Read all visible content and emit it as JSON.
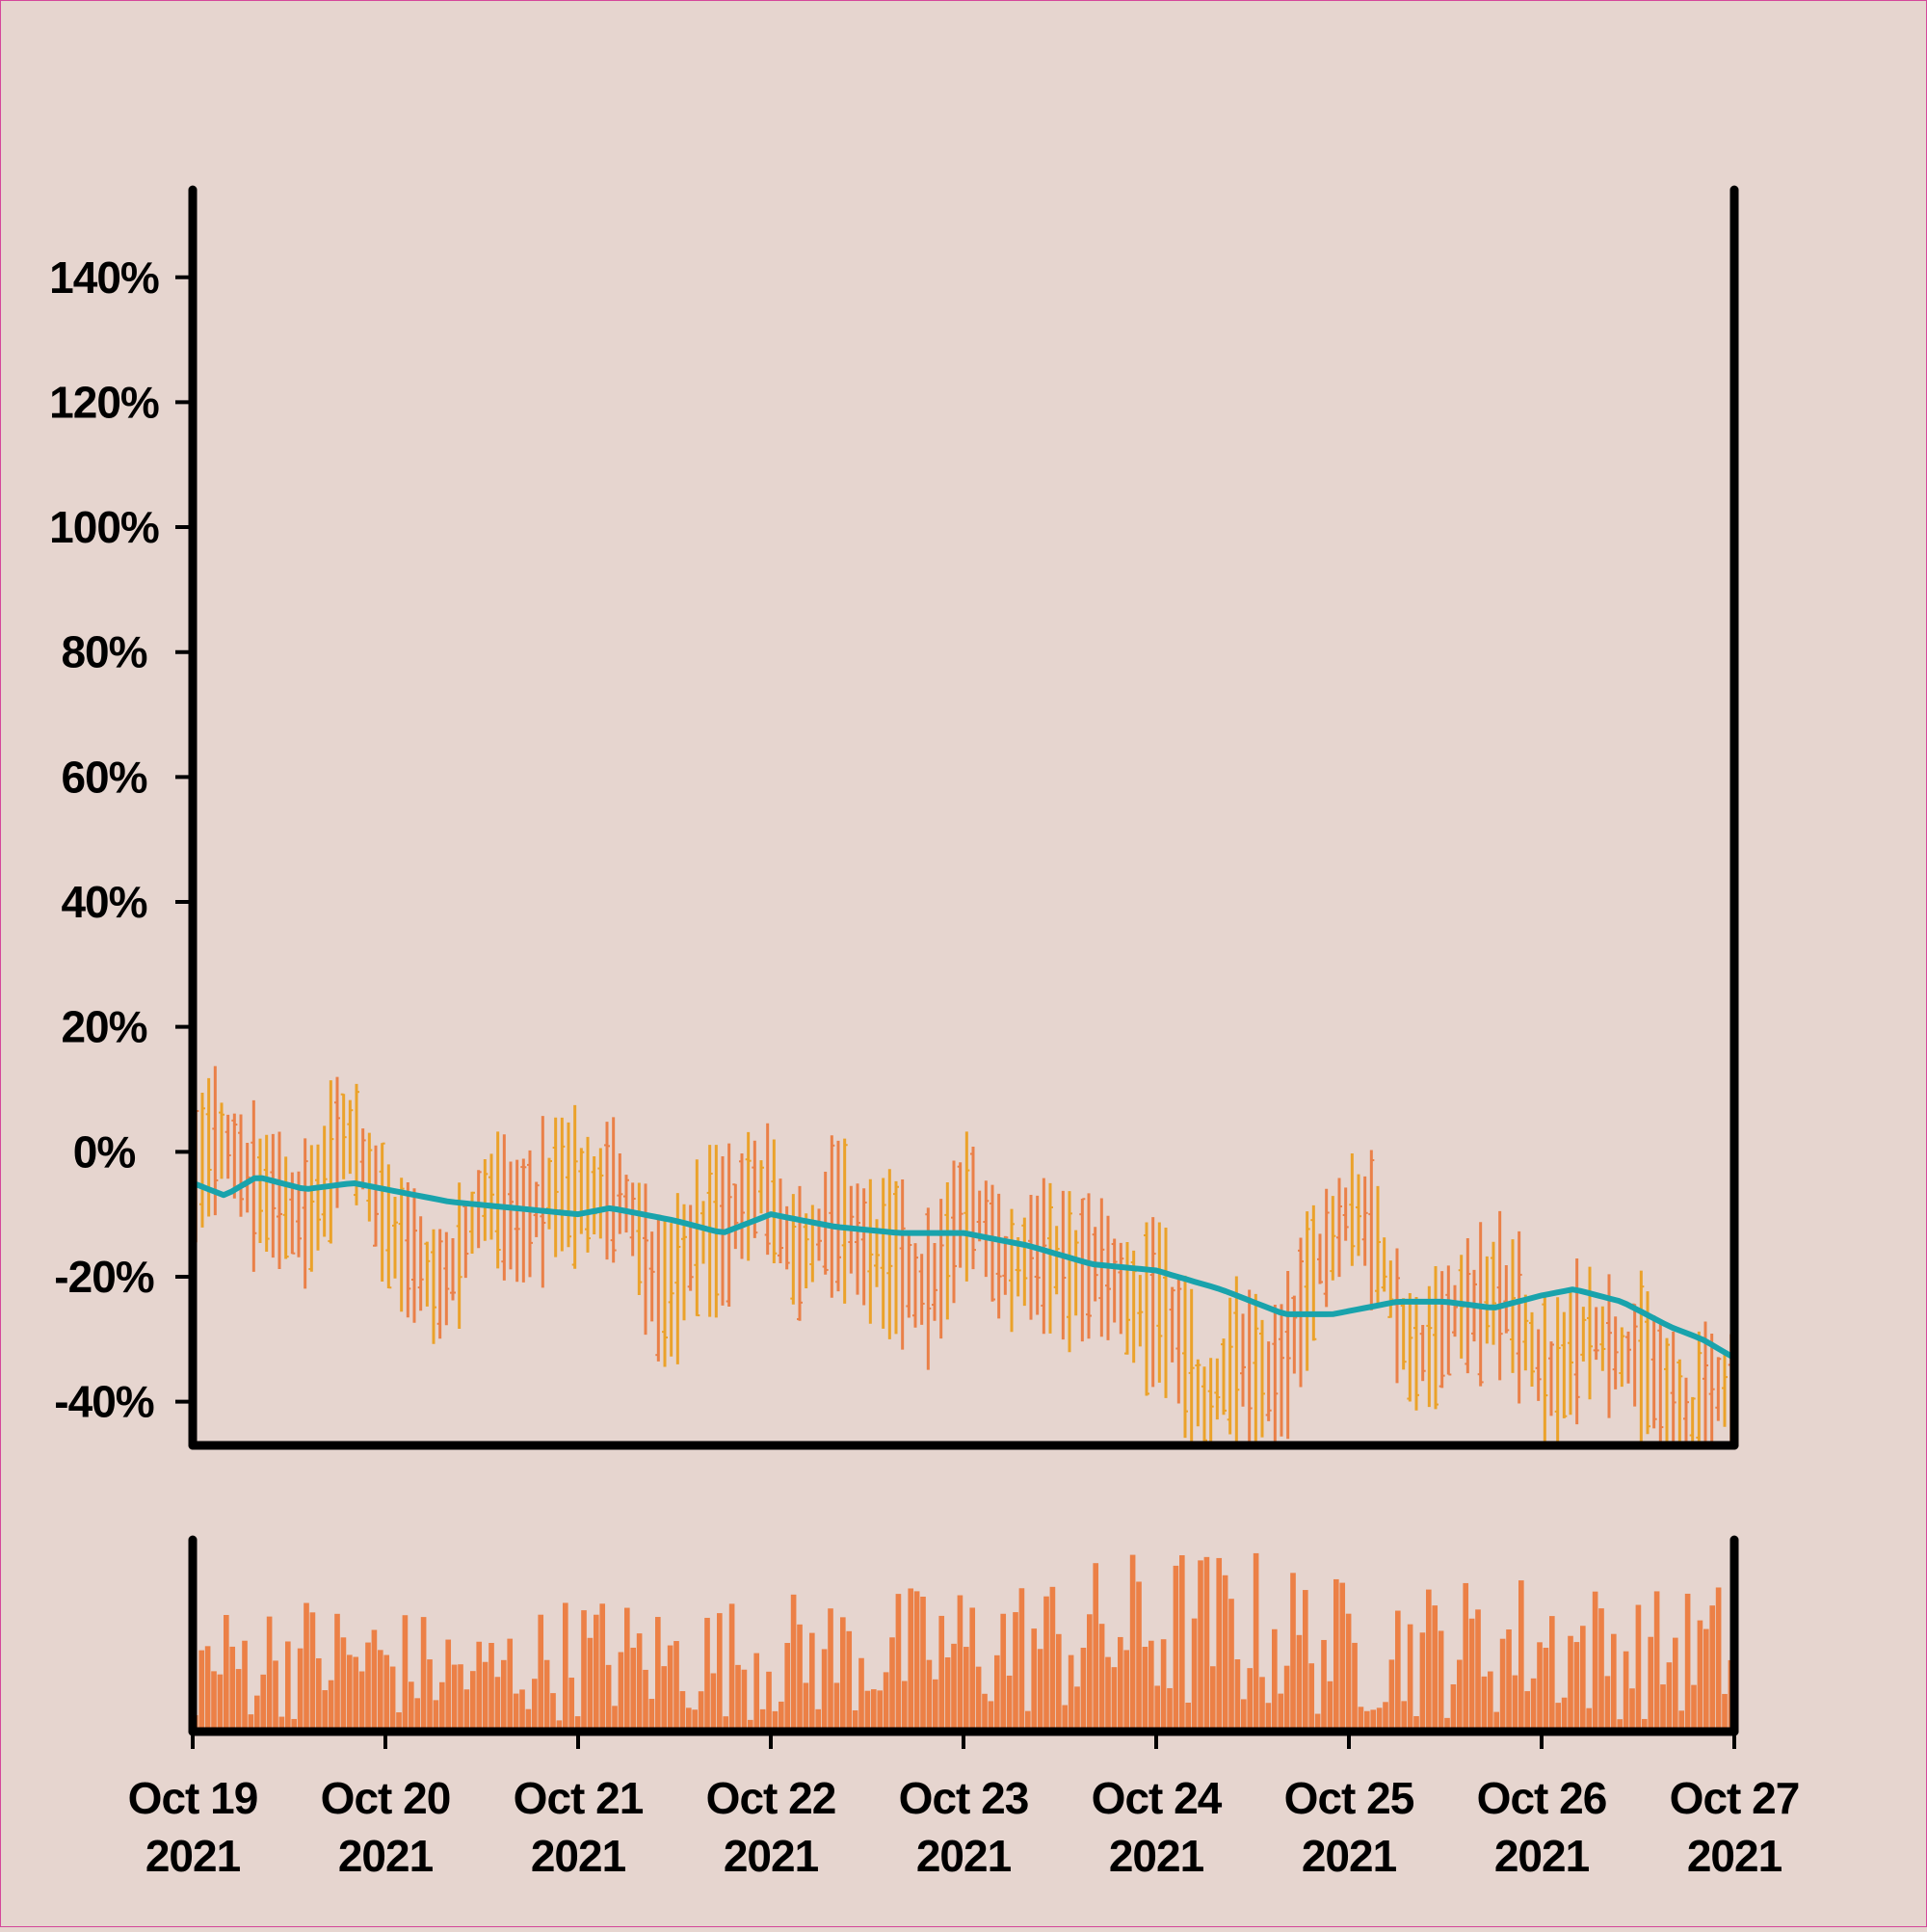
{
  "colors": {
    "background": "#e6d5cf",
    "border": "#d4479a",
    "axis": "#000000",
    "bar_up": "#eba22a",
    "bar_down": "#ea8048",
    "moving_average": "#19a3ac",
    "volume": "#ec8046"
  },
  "chart_data": {
    "type": "ohlc",
    "title": "",
    "xlabel": "",
    "ylabel": "",
    "ylim": [
      -47,
      154
    ],
    "yticks": [
      {
        "value": 140,
        "label": "140%"
      },
      {
        "value": 120,
        "label": "120%"
      },
      {
        "value": 100,
        "label": "100%"
      },
      {
        "value": 80,
        "label": "80%"
      },
      {
        "value": 60,
        "label": "60%"
      },
      {
        "value": 40,
        "label": "40%"
      },
      {
        "value": 20,
        "label": "20%"
      },
      {
        "value": 0,
        "label": "0%"
      },
      {
        "value": -20,
        "label": "-20%"
      },
      {
        "value": -40,
        "label": "-40%"
      }
    ],
    "xrange": [
      "2021-10-19T00:00",
      "2021-10-27T00:00"
    ],
    "xticks": [
      {
        "date": "2021-10-19",
        "line1": "Oct 19",
        "line2": "2021"
      },
      {
        "date": "2021-10-20",
        "line1": "Oct 20",
        "line2": "2021"
      },
      {
        "date": "2021-10-21",
        "line1": "Oct 21",
        "line2": "2021"
      },
      {
        "date": "2021-10-22",
        "line1": "Oct 22",
        "line2": "2021"
      },
      {
        "date": "2021-10-23",
        "line1": "Oct 23",
        "line2": "2021"
      },
      {
        "date": "2021-10-24",
        "line1": "Oct 24",
        "line2": "2021"
      },
      {
        "date": "2021-10-25",
        "line1": "Oct 25",
        "line2": "2021"
      },
      {
        "date": "2021-10-26",
        "line1": "Oct 26",
        "line2": "2021"
      },
      {
        "date": "2021-10-27",
        "line1": "Oct 27",
        "line2": "2021"
      }
    ],
    "price_guide": [
      [
        "2021-10-19T00:00",
        -4
      ],
      [
        "2021-10-19T06:00",
        -3
      ],
      [
        "2021-10-19T12:00",
        -8
      ],
      [
        "2021-10-19T18:00",
        -2
      ],
      [
        "2021-10-20T00:00",
        -8
      ],
      [
        "2021-10-20T06:00",
        -20
      ],
      [
        "2021-10-20T12:00",
        -14
      ],
      [
        "2021-10-20T18:00",
        -5
      ],
      [
        "2021-10-21T00:00",
        -6
      ],
      [
        "2021-10-21T06:00",
        -12
      ],
      [
        "2021-10-21T12:00",
        -18
      ],
      [
        "2021-10-21T18:00",
        -14
      ],
      [
        "2021-10-22T00:00",
        -6
      ],
      [
        "2021-10-22T06:00",
        -14
      ],
      [
        "2021-10-22T12:00",
        -16
      ],
      [
        "2021-10-22T18:00",
        -18
      ],
      [
        "2021-10-23T00:00",
        -14
      ],
      [
        "2021-10-23T06:00",
        -17
      ],
      [
        "2021-10-23T12:00",
        -14
      ],
      [
        "2021-10-23T18:00",
        -26
      ],
      [
        "2021-10-24T00:00",
        -20
      ],
      [
        "2021-10-24T06:00",
        -40
      ],
      [
        "2021-10-24T12:00",
        -38
      ],
      [
        "2021-10-24T18:00",
        -24
      ],
      [
        "2021-10-25T00:00",
        -10
      ],
      [
        "2021-10-25T06:00",
        -24
      ],
      [
        "2021-10-25T12:00",
        -30
      ],
      [
        "2021-10-25T18:00",
        -24
      ],
      [
        "2021-10-26T00:00",
        -30
      ],
      [
        "2021-10-26T06:00",
        -34
      ],
      [
        "2021-10-26T12:00",
        -32
      ],
      [
        "2021-10-26T18:00",
        -40
      ],
      [
        "2021-10-27T00:00",
        -45
      ]
    ],
    "moving_average": [
      [
        "2021-10-19T00:00",
        -5
      ],
      [
        "2021-10-19T04:00",
        -7
      ],
      [
        "2021-10-19T08:00",
        -4
      ],
      [
        "2021-10-19T14:00",
        -6
      ],
      [
        "2021-10-19T20:00",
        -5
      ],
      [
        "2021-10-20T00:00",
        -6
      ],
      [
        "2021-10-20T08:00",
        -8
      ],
      [
        "2021-10-20T16:00",
        -9
      ],
      [
        "2021-10-21T00:00",
        -10
      ],
      [
        "2021-10-21T04:00",
        -9
      ],
      [
        "2021-10-21T12:00",
        -11
      ],
      [
        "2021-10-21T18:00",
        -13
      ],
      [
        "2021-10-22T00:00",
        -10
      ],
      [
        "2021-10-22T08:00",
        -12
      ],
      [
        "2021-10-22T16:00",
        -13
      ],
      [
        "2021-10-23T00:00",
        -13
      ],
      [
        "2021-10-23T08:00",
        -15
      ],
      [
        "2021-10-23T16:00",
        -18
      ],
      [
        "2021-10-24T00:00",
        -19
      ],
      [
        "2021-10-24T08:00",
        -22
      ],
      [
        "2021-10-24T16:00",
        -26
      ],
      [
        "2021-10-24T22:00",
        -26
      ],
      [
        "2021-10-25T06:00",
        -24
      ],
      [
        "2021-10-25T12:00",
        -24
      ],
      [
        "2021-10-25T18:00",
        -25
      ],
      [
        "2021-10-26T00:00",
        -23
      ],
      [
        "2021-10-26T04:00",
        -22
      ],
      [
        "2021-10-26T10:00",
        -24
      ],
      [
        "2021-10-26T16:00",
        -28
      ],
      [
        "2021-10-26T20:00",
        -30
      ],
      [
        "2021-10-27T00:00",
        -33
      ]
    ],
    "volume_range": [
      0,
      30
    ],
    "volume_guide": [
      [
        "2021-10-19T00:00",
        10
      ],
      [
        "2021-10-19T12:00",
        12
      ],
      [
        "2021-10-20T00:00",
        11
      ],
      [
        "2021-10-20T12:00",
        9
      ],
      [
        "2021-10-21T00:00",
        12
      ],
      [
        "2021-10-21T12:00",
        11
      ],
      [
        "2021-10-22T00:00",
        12
      ],
      [
        "2021-10-22T12:00",
        12
      ],
      [
        "2021-10-23T00:00",
        13
      ],
      [
        "2021-10-23T12:00",
        14
      ],
      [
        "2021-10-24T00:00",
        16
      ],
      [
        "2021-10-24T12:00",
        16
      ],
      [
        "2021-10-25T00:00",
        13
      ],
      [
        "2021-10-25T12:00",
        13
      ],
      [
        "2021-10-26T00:00",
        14
      ],
      [
        "2021-10-26T12:00",
        12
      ],
      [
        "2021-10-27T00:00",
        13
      ]
    ]
  }
}
